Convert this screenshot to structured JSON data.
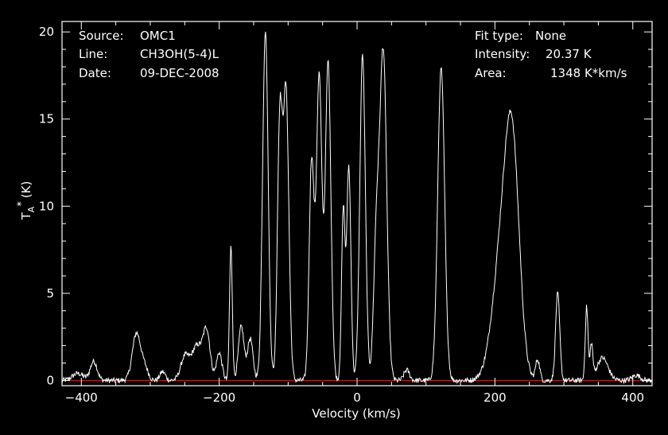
{
  "header_left": {
    "source_label": "Source:",
    "source_value": "OMC1",
    "line_label": "Line:",
    "line_value": "CH3OH(5-4)L",
    "date_label": "Date:",
    "date_value": "09-DEC-2008"
  },
  "header_right": {
    "fit_label": "Fit type:",
    "fit_value": "None",
    "intensity_label": "Intensity:",
    "intensity_value": "20.37 K",
    "area_label": "Area:",
    "area_value": "1348 K*km/s"
  },
  "colors": {
    "background": "#000000",
    "trace": "#ffffff",
    "baseline": "#d02020",
    "axes": "#ffffff"
  },
  "chart_data": {
    "type": "line",
    "title": "",
    "xlabel": "Velocity (km/s)",
    "ylabel_main": "T",
    "ylabel_sub": "A",
    "ylabel_sup": "*",
    "ylabel_unit": "(K)",
    "xlim": [
      -428,
      428
    ],
    "ylim": [
      -0.3,
      20.6
    ],
    "xticks": [
      -400,
      -200,
      0,
      200,
      400
    ],
    "yticks": [
      0,
      5,
      10,
      15,
      20
    ],
    "grid": false,
    "baseline_y": 0,
    "series": [
      {
        "name": "",
        "baseline_noise": 0.15,
        "components": [
          {
            "center": -405,
            "amp": 0.4,
            "width": 8
          },
          {
            "center": -382,
            "amp": 1.1,
            "width": 5
          },
          {
            "center": -320,
            "amp": 2.7,
            "width": 6
          },
          {
            "center": -308,
            "amp": 0.7,
            "width": 5
          },
          {
            "center": -282,
            "amp": 0.5,
            "width": 4
          },
          {
            "center": -250,
            "amp": 1.3,
            "width": 6
          },
          {
            "center": -232,
            "amp": 2.0,
            "width": 8
          },
          {
            "center": -218,
            "amp": 2.6,
            "width": 5
          },
          {
            "center": -200,
            "amp": 1.6,
            "width": 4
          },
          {
            "center": -183,
            "amp": 7.7,
            "width": 2
          },
          {
            "center": -168,
            "amp": 3.1,
            "width": 4
          },
          {
            "center": -155,
            "amp": 2.4,
            "width": 4
          },
          {
            "center": -133,
            "amp": 20.1,
            "width": 4
          },
          {
            "center": -112,
            "amp": 14.8,
            "width": 3.5
          },
          {
            "center": -103,
            "amp": 16.5,
            "width": 4
          },
          {
            "center": -66,
            "amp": 12.5,
            "width": 3.5
          },
          {
            "center": -55,
            "amp": 17.5,
            "width": 4
          },
          {
            "center": -42,
            "amp": 18.3,
            "width": 4
          },
          {
            "center": -20,
            "amp": 9.7,
            "width": 2.5
          },
          {
            "center": -12,
            "amp": 12.3,
            "width": 3
          },
          {
            "center": 8,
            "amp": 18.7,
            "width": 4
          },
          {
            "center": 28,
            "amp": 7.8,
            "width": 4
          },
          {
            "center": 38,
            "amp": 18.8,
            "width": 5
          },
          {
            "center": 72,
            "amp": 0.6,
            "width": 4
          },
          {
            "center": 122,
            "amp": 17.9,
            "width": 5
          },
          {
            "center": 212,
            "amp": 8.0,
            "width": 14
          },
          {
            "center": 226,
            "amp": 10.0,
            "width": 10
          },
          {
            "center": 262,
            "amp": 1.2,
            "width": 3
          },
          {
            "center": 291,
            "amp": 5.0,
            "width": 3
          },
          {
            "center": 333,
            "amp": 4.2,
            "width": 2
          },
          {
            "center": 340,
            "amp": 2.0,
            "width": 2
          },
          {
            "center": 356,
            "amp": 1.3,
            "width": 8
          },
          {
            "center": 405,
            "amp": 0.3,
            "width": 6
          }
        ]
      }
    ]
  }
}
